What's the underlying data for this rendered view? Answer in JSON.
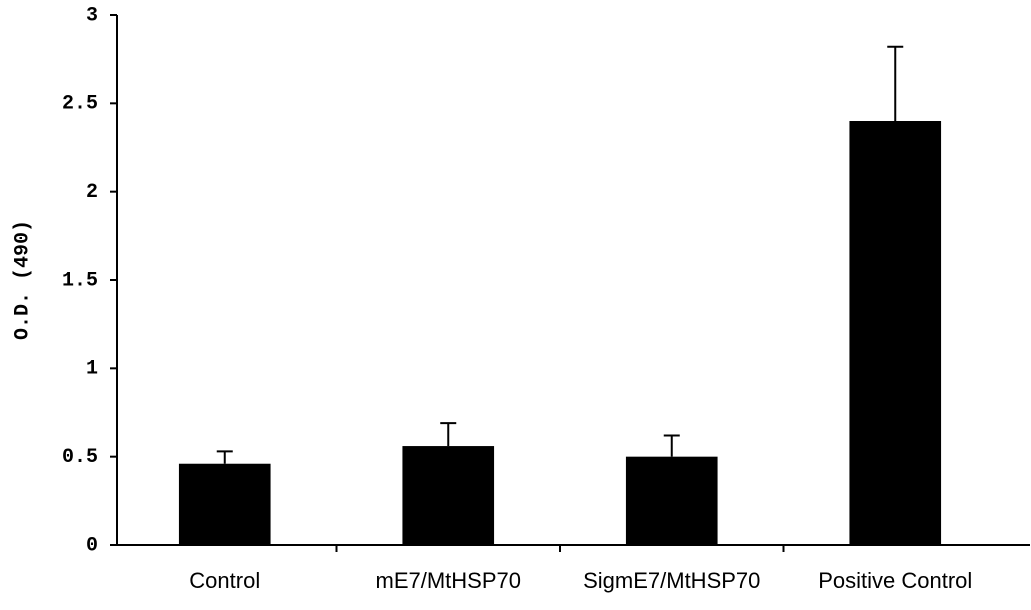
{
  "chart_data": {
    "type": "bar",
    "y_label": "O.D. (490)",
    "categories": [
      "Control",
      "mE7/MtHSP70",
      "SigmE7/MtHSP70",
      "Positive Control"
    ],
    "values": [
      0.46,
      0.56,
      0.5,
      2.4
    ],
    "errors": [
      0.07,
      0.13,
      0.12,
      0.42
    ],
    "color": "#000000",
    "ylim": [
      0,
      3
    ],
    "yticks": [
      0,
      0.5,
      1,
      1.5,
      2,
      2.5,
      3
    ],
    "grid": false
  }
}
